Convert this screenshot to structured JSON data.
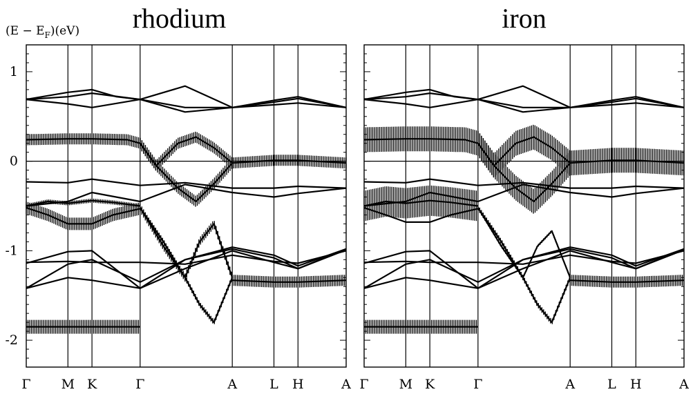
{
  "y_axis_label": "(E − E",
  "y_axis_label_sub": "F",
  "y_axis_label_end": ")(eV)",
  "chart_data": [
    {
      "type": "line",
      "title": "rhodium",
      "ylim": [
        -2.3,
        1.3
      ],
      "yticks": [
        -2,
        -1,
        0,
        1
      ],
      "ytick_labels": [
        "-2",
        "-1",
        "0",
        "1"
      ],
      "kpath": [
        "Γ",
        "M",
        "K",
        "Γ",
        "A",
        "L",
        "H",
        "A"
      ],
      "kpos": [
        0,
        0.577,
        0.91,
        1.577,
        2.853,
        3.43,
        3.763,
        4.43
      ],
      "grid": false,
      "fermi_line": 0,
      "note_weights": "vertical hatch width proportional to projected character",
      "series": [
        {
          "weight": 0,
          "x": [
            0,
            0.577,
            0.91,
            1.25,
            1.577,
            2.2,
            2.853,
            3.43,
            3.763,
            4.43
          ],
          "y": [
            0.69,
            0.77,
            0.8,
            0.72,
            0.69,
            0.84,
            0.6,
            0.68,
            0.72,
            0.6
          ]
        },
        {
          "weight": 0,
          "x": [
            0,
            0.577,
            0.91,
            1.577,
            2.2,
            2.853,
            3.43,
            3.763,
            4.43
          ],
          "y": [
            0.69,
            0.72,
            0.76,
            0.69,
            0.6,
            0.6,
            0.66,
            0.7,
            0.6
          ]
        },
        {
          "weight": 0,
          "x": [
            0,
            0.577,
            0.91,
            1.577,
            2.2,
            2.853,
            3.43,
            3.763,
            4.43
          ],
          "y": [
            0.69,
            0.64,
            0.6,
            0.69,
            0.55,
            0.6,
            0.63,
            0.65,
            0.6
          ]
        },
        {
          "weight": 8,
          "x": [
            0,
            0.577,
            0.91,
            1.4,
            1.577,
            1.8,
            2.1,
            2.35,
            2.6,
            2.853,
            3.43,
            3.763,
            4.43
          ],
          "y": [
            0.24,
            0.25,
            0.25,
            0.24,
            0.2,
            -0.05,
            -0.3,
            -0.45,
            -0.25,
            -0.02,
            0.01,
            0.01,
            -0.02
          ]
        },
        {
          "weight": 8,
          "x": [
            1.577,
            1.8,
            2.1,
            2.35,
            2.6,
            2.853
          ],
          "y": [
            0.2,
            -0.05,
            0.2,
            0.27,
            0.15,
            -0.02
          ]
        },
        {
          "weight": 0,
          "x": [
            0,
            0.577,
            0.91,
            1.577,
            2.2,
            2.853,
            3.43,
            3.763,
            4.43
          ],
          "y": [
            -0.23,
            -0.24,
            -0.2,
            -0.27,
            -0.24,
            -0.3,
            -0.3,
            -0.28,
            -0.3
          ]
        },
        {
          "weight": 0,
          "x": [
            0,
            0.577,
            0.91,
            1.577,
            2.2,
            2.853,
            3.43,
            3.763,
            4.43
          ],
          "y": [
            -0.5,
            -0.45,
            -0.35,
            -0.45,
            -0.26,
            -0.35,
            -0.4,
            -0.36,
            -0.3
          ]
        },
        {
          "weight": 9,
          "x": [
            0,
            0.3,
            0.577,
            0.91,
            1.2,
            1.577
          ],
          "y": [
            -0.52,
            -0.6,
            -0.7,
            -0.7,
            -0.6,
            -0.53
          ]
        },
        {
          "weight": 3,
          "x": [
            0,
            0.3,
            0.577,
            0.91,
            1.2,
            1.577
          ],
          "y": [
            -0.5,
            -0.45,
            -0.47,
            -0.44,
            -0.46,
            -0.5
          ]
        },
        {
          "weight": 4,
          "x": [
            1.577,
            1.9,
            2.2,
            2.4,
            2.6,
            2.853
          ],
          "y": [
            -0.52,
            -0.9,
            -1.3,
            -1.6,
            -1.8,
            -1.3
          ]
        },
        {
          "weight": 6,
          "x": [
            1.577,
            1.9,
            2.2,
            2.4,
            2.6,
            2.853
          ],
          "y": [
            -0.52,
            -0.95,
            -1.3,
            -0.9,
            -0.7,
            -1.3
          ]
        },
        {
          "weight": 0,
          "x": [
            0,
            0.577,
            0.91,
            1.577,
            2.2,
            2.853,
            3.43,
            3.763,
            4.43
          ],
          "y": [
            -1.13,
            -1.12,
            -1.13,
            -1.13,
            -1.15,
            -1.05,
            -1.12,
            -1.14,
            -1.0
          ]
        },
        {
          "weight": 0,
          "x": [
            0,
            0.577,
            0.91,
            1.577,
            2.2,
            2.853,
            3.43,
            3.763,
            4.43
          ],
          "y": [
            -1.14,
            -1.01,
            -1.0,
            -1.42,
            -1.1,
            -0.96,
            -1.05,
            -1.17,
            -0.98
          ]
        },
        {
          "weight": 0,
          "x": [
            0,
            0.577,
            0.91,
            1.577,
            2.2,
            2.853,
            3.43,
            3.763,
            4.43
          ],
          "y": [
            -1.42,
            -1.15,
            -1.1,
            -1.35,
            -1.1,
            -0.98,
            -1.08,
            -1.2,
            -0.98
          ]
        },
        {
          "weight": 0,
          "x": [
            0,
            0.577,
            0.91,
            1.577,
            2.2,
            2.853,
            3.43,
            3.763,
            4.43
          ],
          "y": [
            -1.42,
            -1.3,
            -1.33,
            -1.42,
            -1.2,
            -1.0,
            -1.13,
            -1.2,
            -0.99
          ]
        },
        {
          "weight": 8,
          "x": [
            2.853,
            3.43,
            3.763,
            4.43
          ],
          "y": [
            -1.33,
            -1.35,
            -1.35,
            -1.33
          ]
        },
        {
          "weight": 10,
          "x": [
            0,
            0.577,
            0.91,
            1.577
          ],
          "y": [
            -1.85,
            -1.85,
            -1.85,
            -1.85
          ]
        }
      ]
    },
    {
      "type": "line",
      "title": "iron",
      "ylim": [
        -2.3,
        1.3
      ],
      "yticks": [
        -2,
        -1,
        0,
        1
      ],
      "kpath": [
        "Γ",
        "M",
        "K",
        "Γ",
        "A",
        "L",
        "H",
        "A"
      ],
      "kpos": [
        0,
        0.577,
        0.91,
        1.577,
        2.853,
        3.43,
        3.763,
        4.43
      ],
      "grid": false,
      "fermi_line": 0,
      "series": [
        {
          "weight": 0,
          "x": [
            0,
            0.577,
            0.91,
            1.25,
            1.577,
            2.2,
            2.853,
            3.43,
            3.763,
            4.43
          ],
          "y": [
            0.69,
            0.77,
            0.8,
            0.72,
            0.69,
            0.84,
            0.6,
            0.68,
            0.72,
            0.6
          ]
        },
        {
          "weight": 0,
          "x": [
            0,
            0.577,
            0.91,
            1.577,
            2.2,
            2.853,
            3.43,
            3.763,
            4.43
          ],
          "y": [
            0.69,
            0.72,
            0.76,
            0.69,
            0.6,
            0.6,
            0.66,
            0.7,
            0.6
          ]
        },
        {
          "weight": 0,
          "x": [
            0,
            0.577,
            0.91,
            1.577,
            2.2,
            2.853,
            3.43,
            3.763,
            4.43
          ],
          "y": [
            0.69,
            0.64,
            0.6,
            0.69,
            0.55,
            0.6,
            0.63,
            0.65,
            0.6
          ]
        },
        {
          "weight": 18,
          "x": [
            0,
            0.577,
            0.91,
            1.4,
            1.577,
            1.8,
            2.1,
            2.35,
            2.6,
            2.853,
            3.43,
            3.763,
            4.43
          ],
          "y": [
            0.24,
            0.25,
            0.25,
            0.24,
            0.2,
            -0.05,
            -0.3,
            -0.45,
            -0.25,
            -0.02,
            0.01,
            0.01,
            -0.02
          ]
        },
        {
          "weight": 18,
          "x": [
            1.577,
            1.8,
            2.1,
            2.35,
            2.6,
            2.853
          ],
          "y": [
            0.2,
            -0.05,
            0.2,
            0.27,
            0.15,
            -0.02
          ]
        },
        {
          "weight": 0,
          "x": [
            0,
            0.577,
            0.91,
            1.577,
            2.2,
            2.853,
            3.43,
            3.763,
            4.43
          ],
          "y": [
            -0.23,
            -0.24,
            -0.2,
            -0.27,
            -0.24,
            -0.3,
            -0.3,
            -0.28,
            -0.3
          ]
        },
        {
          "weight": 0,
          "x": [
            0,
            0.577,
            0.91,
            1.577,
            2.2,
            2.853,
            3.43,
            3.763,
            4.43
          ],
          "y": [
            -0.5,
            -0.45,
            -0.35,
            -0.45,
            -0.26,
            -0.35,
            -0.4,
            -0.36,
            -0.3
          ]
        },
        {
          "weight": 0,
          "x": [
            0,
            0.3,
            0.577,
            0.91,
            1.2,
            1.577
          ],
          "y": [
            -0.52,
            -0.6,
            -0.68,
            -0.68,
            -0.6,
            -0.53
          ]
        },
        {
          "weight": 22,
          "x": [
            0,
            0.3,
            0.577,
            0.91,
            1.2,
            1.577
          ],
          "y": [
            -0.5,
            -0.45,
            -0.47,
            -0.44,
            -0.46,
            -0.5
          ]
        },
        {
          "weight": 4,
          "x": [
            1.577,
            1.9,
            2.2,
            2.4,
            2.6,
            2.853
          ],
          "y": [
            -0.52,
            -0.9,
            -1.3,
            -1.6,
            -1.8,
            -1.3
          ]
        },
        {
          "weight": 2,
          "x": [
            1.577,
            1.9,
            2.2,
            2.4,
            2.6,
            2.853
          ],
          "y": [
            -0.52,
            -0.95,
            -1.3,
            -0.95,
            -0.78,
            -1.3
          ]
        },
        {
          "weight": 0,
          "x": [
            0,
            0.577,
            0.91,
            1.577,
            2.2,
            2.853,
            3.43,
            3.763,
            4.43
          ],
          "y": [
            -1.13,
            -1.12,
            -1.13,
            -1.13,
            -1.15,
            -1.05,
            -1.12,
            -1.14,
            -1.0
          ]
        },
        {
          "weight": 0,
          "x": [
            0,
            0.577,
            0.91,
            1.577,
            2.2,
            2.853,
            3.43,
            3.763,
            4.43
          ],
          "y": [
            -1.14,
            -1.01,
            -1.0,
            -1.42,
            -1.1,
            -0.96,
            -1.05,
            -1.17,
            -0.98
          ]
        },
        {
          "weight": 0,
          "x": [
            0,
            0.577,
            0.91,
            1.577,
            2.2,
            2.853,
            3.43,
            3.763,
            4.43
          ],
          "y": [
            -1.42,
            -1.15,
            -1.1,
            -1.35,
            -1.1,
            -0.98,
            -1.08,
            -1.2,
            -0.98
          ]
        },
        {
          "weight": 0,
          "x": [
            0,
            0.577,
            0.91,
            1.577,
            2.2,
            2.853,
            3.43,
            3.763,
            4.43
          ],
          "y": [
            -1.42,
            -1.3,
            -1.33,
            -1.42,
            -1.2,
            -1.0,
            -1.13,
            -1.2,
            -0.99
          ]
        },
        {
          "weight": 8,
          "x": [
            2.853,
            3.43,
            3.763,
            4.43
          ],
          "y": [
            -1.33,
            -1.35,
            -1.35,
            -1.33
          ]
        },
        {
          "weight": 10,
          "x": [
            0,
            0.577,
            0.91,
            1.577
          ],
          "y": [
            -1.85,
            -1.85,
            -1.85,
            -1.85
          ]
        }
      ]
    }
  ]
}
